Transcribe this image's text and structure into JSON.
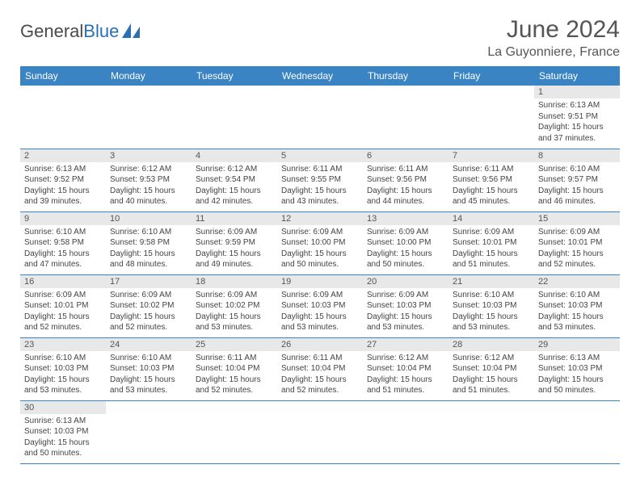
{
  "brand": {
    "name_a": "General",
    "name_b": "Blue"
  },
  "title": "June 2024",
  "location": "La Guyonniere, France",
  "colors": {
    "header_bg": "#3a84c4",
    "header_text": "#ffffff",
    "daynum_bg": "#e8e8e8",
    "text": "#444444",
    "rule": "#3a84c4"
  },
  "weekdays": [
    "Sunday",
    "Monday",
    "Tuesday",
    "Wednesday",
    "Thursday",
    "Friday",
    "Saturday"
  ],
  "blank_leading": 6,
  "days": [
    {
      "n": 1,
      "sunrise": "6:13 AM",
      "sunset": "9:51 PM",
      "daylight": "15 hours and 37 minutes."
    },
    {
      "n": 2,
      "sunrise": "6:13 AM",
      "sunset": "9:52 PM",
      "daylight": "15 hours and 39 minutes."
    },
    {
      "n": 3,
      "sunrise": "6:12 AM",
      "sunset": "9:53 PM",
      "daylight": "15 hours and 40 minutes."
    },
    {
      "n": 4,
      "sunrise": "6:12 AM",
      "sunset": "9:54 PM",
      "daylight": "15 hours and 42 minutes."
    },
    {
      "n": 5,
      "sunrise": "6:11 AM",
      "sunset": "9:55 PM",
      "daylight": "15 hours and 43 minutes."
    },
    {
      "n": 6,
      "sunrise": "6:11 AM",
      "sunset": "9:56 PM",
      "daylight": "15 hours and 44 minutes."
    },
    {
      "n": 7,
      "sunrise": "6:11 AM",
      "sunset": "9:56 PM",
      "daylight": "15 hours and 45 minutes."
    },
    {
      "n": 8,
      "sunrise": "6:10 AM",
      "sunset": "9:57 PM",
      "daylight": "15 hours and 46 minutes."
    },
    {
      "n": 9,
      "sunrise": "6:10 AM",
      "sunset": "9:58 PM",
      "daylight": "15 hours and 47 minutes."
    },
    {
      "n": 10,
      "sunrise": "6:10 AM",
      "sunset": "9:58 PM",
      "daylight": "15 hours and 48 minutes."
    },
    {
      "n": 11,
      "sunrise": "6:09 AM",
      "sunset": "9:59 PM",
      "daylight": "15 hours and 49 minutes."
    },
    {
      "n": 12,
      "sunrise": "6:09 AM",
      "sunset": "10:00 PM",
      "daylight": "15 hours and 50 minutes."
    },
    {
      "n": 13,
      "sunrise": "6:09 AM",
      "sunset": "10:00 PM",
      "daylight": "15 hours and 50 minutes."
    },
    {
      "n": 14,
      "sunrise": "6:09 AM",
      "sunset": "10:01 PM",
      "daylight": "15 hours and 51 minutes."
    },
    {
      "n": 15,
      "sunrise": "6:09 AM",
      "sunset": "10:01 PM",
      "daylight": "15 hours and 52 minutes."
    },
    {
      "n": 16,
      "sunrise": "6:09 AM",
      "sunset": "10:01 PM",
      "daylight": "15 hours and 52 minutes."
    },
    {
      "n": 17,
      "sunrise": "6:09 AM",
      "sunset": "10:02 PM",
      "daylight": "15 hours and 52 minutes."
    },
    {
      "n": 18,
      "sunrise": "6:09 AM",
      "sunset": "10:02 PM",
      "daylight": "15 hours and 53 minutes."
    },
    {
      "n": 19,
      "sunrise": "6:09 AM",
      "sunset": "10:03 PM",
      "daylight": "15 hours and 53 minutes."
    },
    {
      "n": 20,
      "sunrise": "6:09 AM",
      "sunset": "10:03 PM",
      "daylight": "15 hours and 53 minutes."
    },
    {
      "n": 21,
      "sunrise": "6:10 AM",
      "sunset": "10:03 PM",
      "daylight": "15 hours and 53 minutes."
    },
    {
      "n": 22,
      "sunrise": "6:10 AM",
      "sunset": "10:03 PM",
      "daylight": "15 hours and 53 minutes."
    },
    {
      "n": 23,
      "sunrise": "6:10 AM",
      "sunset": "10:03 PM",
      "daylight": "15 hours and 53 minutes."
    },
    {
      "n": 24,
      "sunrise": "6:10 AM",
      "sunset": "10:03 PM",
      "daylight": "15 hours and 53 minutes."
    },
    {
      "n": 25,
      "sunrise": "6:11 AM",
      "sunset": "10:04 PM",
      "daylight": "15 hours and 52 minutes."
    },
    {
      "n": 26,
      "sunrise": "6:11 AM",
      "sunset": "10:04 PM",
      "daylight": "15 hours and 52 minutes."
    },
    {
      "n": 27,
      "sunrise": "6:12 AM",
      "sunset": "10:04 PM",
      "daylight": "15 hours and 51 minutes."
    },
    {
      "n": 28,
      "sunrise": "6:12 AM",
      "sunset": "10:04 PM",
      "daylight": "15 hours and 51 minutes."
    },
    {
      "n": 29,
      "sunrise": "6:13 AM",
      "sunset": "10:03 PM",
      "daylight": "15 hours and 50 minutes."
    },
    {
      "n": 30,
      "sunrise": "6:13 AM",
      "sunset": "10:03 PM",
      "daylight": "15 hours and 50 minutes."
    }
  ],
  "labels": {
    "sunrise": "Sunrise:",
    "sunset": "Sunset:",
    "daylight": "Daylight:"
  }
}
